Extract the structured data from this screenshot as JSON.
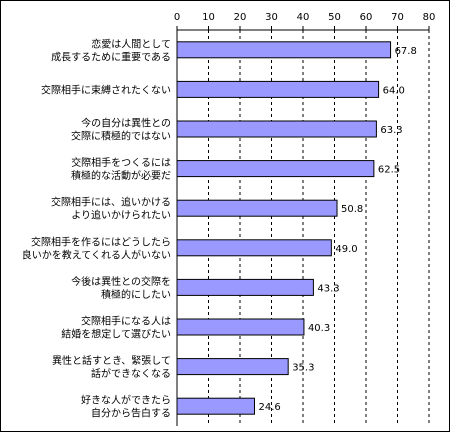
{
  "chart_data": {
    "type": "bar",
    "orientation": "horizontal",
    "title": "",
    "xlabel": "",
    "ylabel": "",
    "xlim": [
      0,
      80
    ],
    "ticks": [
      0,
      10,
      20,
      30,
      40,
      50,
      60,
      70,
      80
    ],
    "tick_labels": [
      "0",
      "10",
      "20",
      "30",
      "40",
      "50",
      "60",
      "70",
      "80"
    ],
    "grid": "vertical dashed",
    "bar_color": "#9999ff",
    "categories": [
      [
        "恋愛は人間として",
        "成長するために重要である"
      ],
      [
        "交際相手に束縛されたくない"
      ],
      [
        "今の自分は異性との",
        "交際に積極的ではない"
      ],
      [
        "交際相手をつくるには",
        "積極的な活動が必要だ"
      ],
      [
        "交際相手には、追いかける",
        "より追いかけられたい"
      ],
      [
        "交際相手を作るにはどうしたら",
        "良いかを教えてくれる人がいない"
      ],
      [
        "今後は異性との交際を",
        "積極的にしたい"
      ],
      [
        "交際相手になる人は",
        "結婚を想定して選びたい"
      ],
      [
        "異性と話すとき、緊張して",
        "話ができなくなる"
      ],
      [
        "好きな人ができたら",
        "自分から告白する"
      ]
    ],
    "values": [
      67.8,
      64.0,
      63.3,
      62.5,
      50.8,
      49.0,
      43.3,
      40.3,
      35.3,
      24.6
    ],
    "value_labels": [
      "67.8",
      "64.0",
      "63.3",
      "62.5",
      "50.8",
      "49.0",
      "43.3",
      "40.3",
      "35.3",
      "24.6"
    ]
  }
}
